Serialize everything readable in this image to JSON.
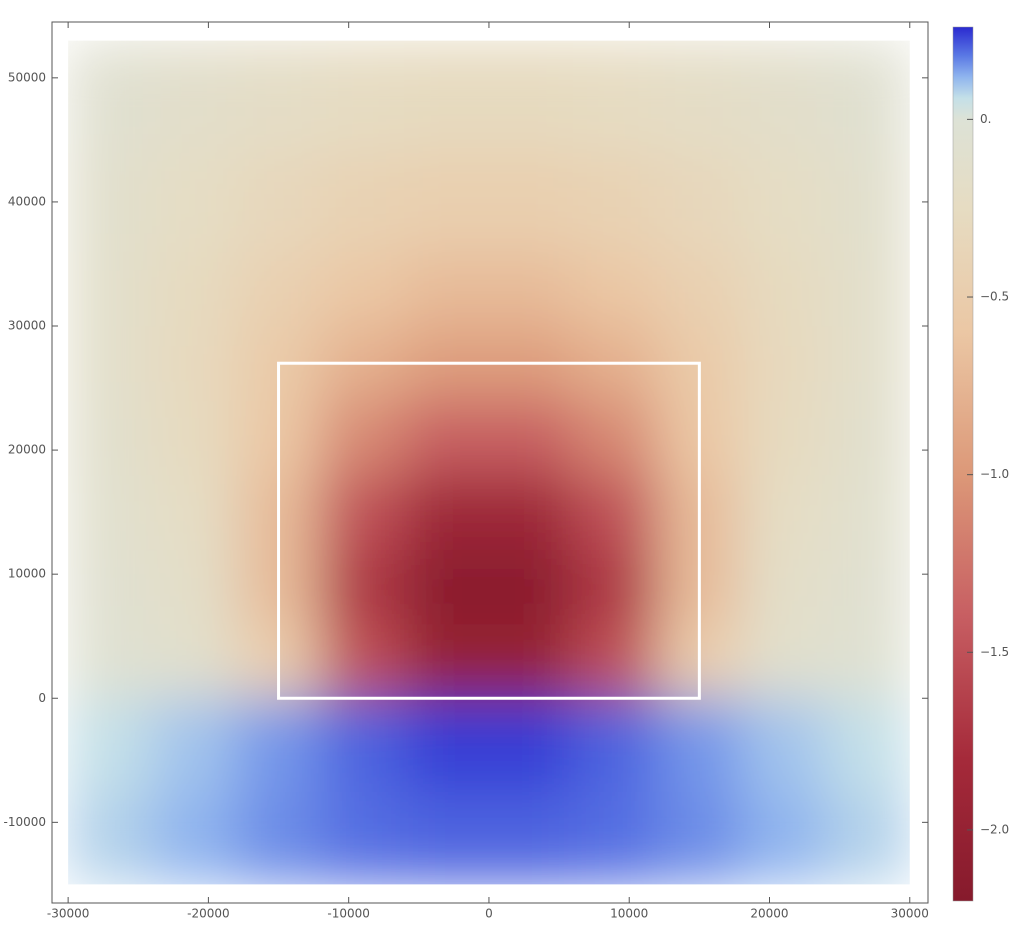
{
  "chart_data": {
    "type": "heatmap",
    "x_bins": [
      -30000,
      -24000,
      -18000,
      -12000,
      -6000,
      0,
      6000,
      12000,
      18000,
      24000,
      30000
    ],
    "y_bins": [
      -15000,
      -7500,
      0,
      6000,
      12000,
      18000,
      24000,
      30000,
      36000,
      44000,
      53000
    ],
    "values": [
      [
        0.08,
        0.12,
        0.16,
        0.19,
        0.2,
        0.2,
        0.19,
        0.16,
        0.12,
        0.08
      ],
      [
        0.06,
        0.1,
        0.15,
        0.2,
        0.24,
        0.24,
        0.2,
        0.15,
        0.1,
        0.06
      ],
      [
        -0.05,
        -0.12,
        -0.5,
        -1.5,
        -2.0,
        -2.0,
        -1.5,
        -0.5,
        -0.12,
        -0.05
      ],
      [
        -0.08,
        -0.18,
        -0.7,
        -1.7,
        -2.15,
        -2.15,
        -1.7,
        -0.7,
        -0.18,
        -0.08
      ],
      [
        -0.1,
        -0.22,
        -0.7,
        -1.5,
        -1.9,
        -1.9,
        -1.5,
        -0.7,
        -0.22,
        -0.1
      ],
      [
        -0.12,
        -0.28,
        -0.6,
        -1.1,
        -1.4,
        -1.4,
        -1.1,
        -0.6,
        -0.28,
        -0.12
      ],
      [
        -0.14,
        -0.3,
        -0.55,
        -0.8,
        -0.95,
        -0.95,
        -0.8,
        -0.55,
        -0.3,
        -0.14
      ],
      [
        -0.14,
        -0.28,
        -0.45,
        -0.6,
        -0.7,
        -0.7,
        -0.6,
        -0.45,
        -0.28,
        -0.14
      ],
      [
        -0.12,
        -0.22,
        -0.33,
        -0.42,
        -0.47,
        -0.47,
        -0.42,
        -0.33,
        -0.22,
        -0.12
      ],
      [
        -0.08,
        -0.15,
        -0.2,
        -0.25,
        -0.28,
        -0.28,
        -0.25,
        -0.2,
        -0.15,
        -0.08
      ]
    ],
    "xlim": [
      -31150,
      31300
    ],
    "ylim": [
      -16500,
      54500
    ],
    "xticks": [
      -30000,
      -20000,
      -10000,
      0,
      10000,
      20000,
      30000
    ],
    "yticks": [
      -10000,
      0,
      10000,
      20000,
      30000,
      40000,
      50000
    ],
    "box": {
      "x": [
        -15000,
        15000
      ],
      "y": [
        0,
        27000
      ],
      "color": "#ffffff"
    },
    "clim": [
      -2.2,
      0.26
    ],
    "cticks": [
      {
        "value": 0,
        "label": "0."
      },
      {
        "value": -0.5,
        "label": "−0.5"
      },
      {
        "value": -1.0,
        "label": "−1.0"
      },
      {
        "value": -1.5,
        "label": "−1.5"
      },
      {
        "value": -2.0,
        "label": "−2.0"
      }
    ],
    "colorscale": [
      [
        -2.2,
        "#861a2c"
      ],
      [
        -1.8,
        "#a52a3a"
      ],
      [
        -1.4,
        "#c75e62"
      ],
      [
        -1.0,
        "#dc9878"
      ],
      [
        -0.6,
        "#ebc7a4"
      ],
      [
        -0.25,
        "#e6dcc2"
      ],
      [
        0,
        "#dde2d6"
      ],
      [
        0.06,
        "#c4e0e8"
      ],
      [
        0.12,
        "#8fb4ee"
      ],
      [
        0.18,
        "#5a78e4"
      ],
      [
        0.26,
        "#2a2ad0"
      ]
    ]
  }
}
